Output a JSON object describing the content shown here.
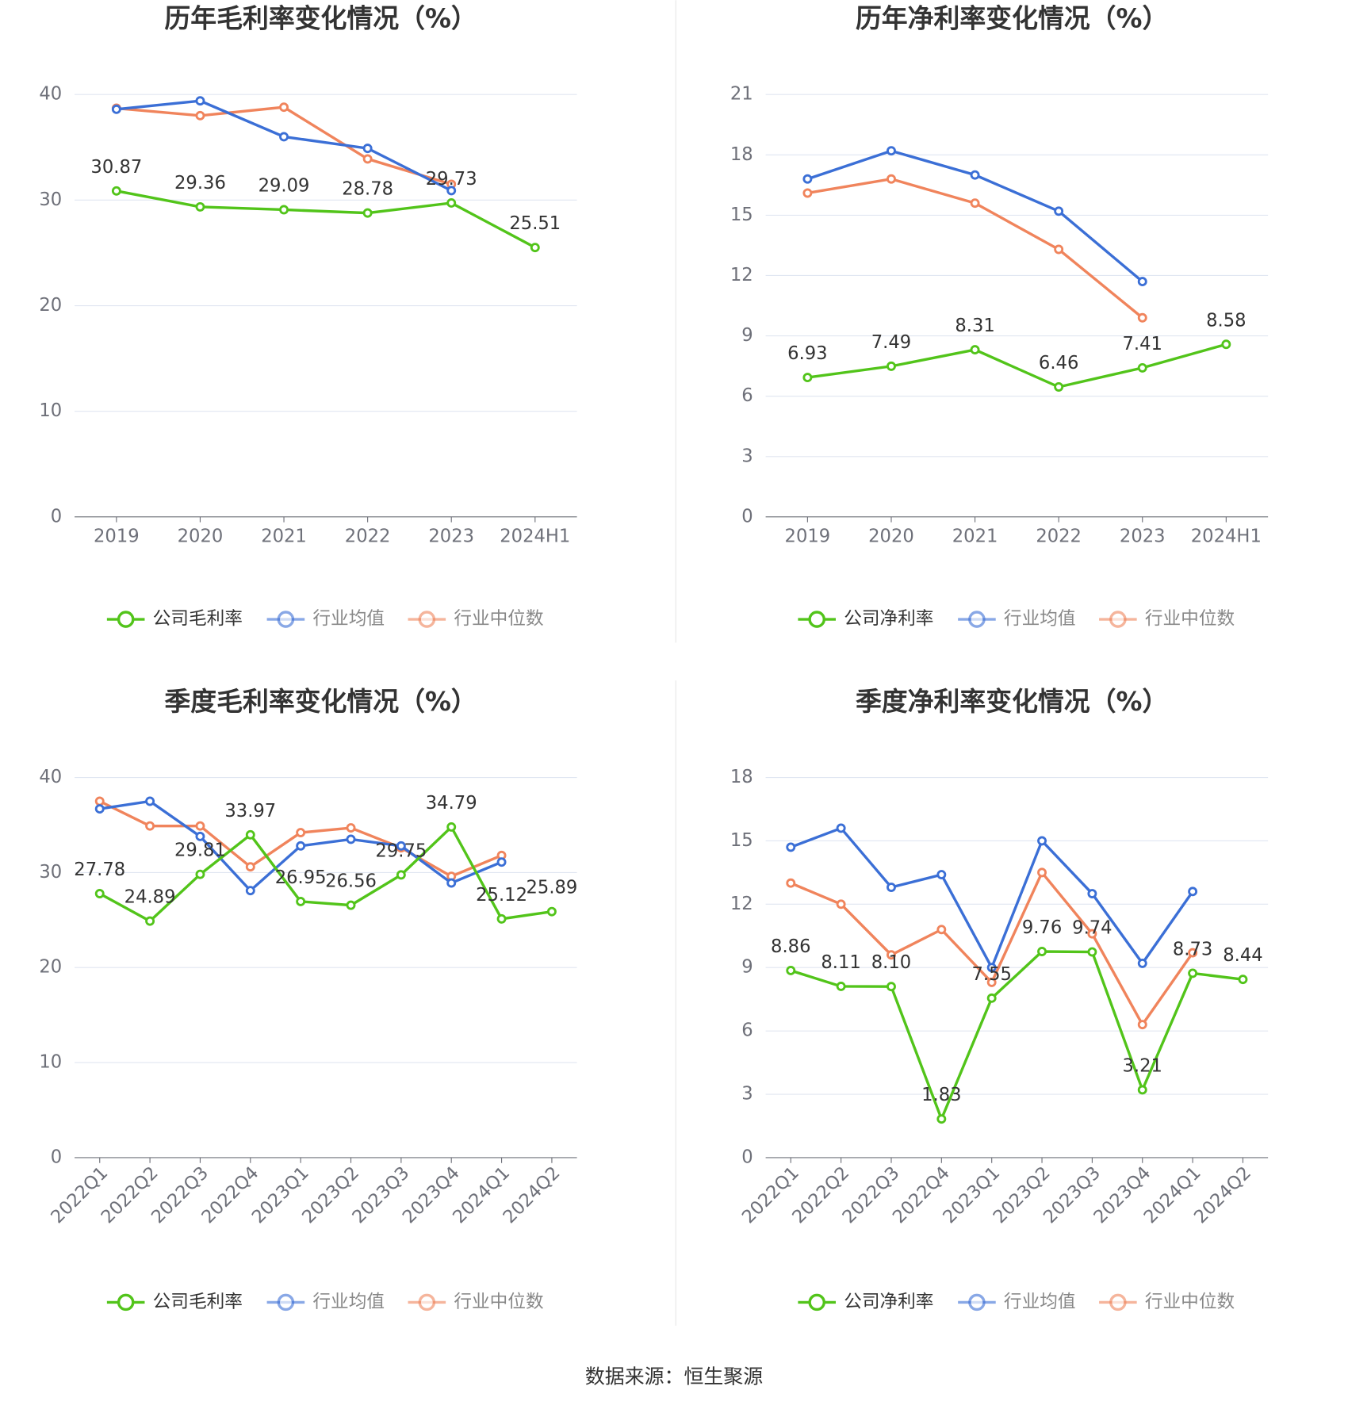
{
  "chart_data": [
    {
      "type": "line",
      "title": "历年毛利率变化情况（%）",
      "categories": [
        "2019",
        "2020",
        "2021",
        "2022",
        "2023",
        "2024H1"
      ],
      "series": [
        {
          "name": "公司毛利率",
          "color": "#52c41a",
          "values": [
            30.87,
            29.36,
            29.09,
            28.78,
            29.73,
            25.51
          ],
          "value_labels": [
            "30.87",
            "29.36",
            "29.09",
            "28.78",
            "29.73",
            "25.51"
          ]
        },
        {
          "name": "行业均值",
          "color": "#3b6fd6",
          "values": [
            38.6,
            39.4,
            36.0,
            34.9,
            30.9,
            null
          ]
        },
        {
          "name": "行业中位数",
          "color": "#f0845c",
          "values": [
            38.7,
            38.0,
            38.8,
            33.9,
            31.5,
            null
          ]
        }
      ],
      "ylim": [
        0,
        40
      ],
      "yticks": [
        0,
        10,
        20,
        30,
        40
      ],
      "grid": true
    },
    {
      "type": "line",
      "title": "历年净利率变化情况（%）",
      "categories": [
        "2019",
        "2020",
        "2021",
        "2022",
        "2023",
        "2024H1"
      ],
      "series": [
        {
          "name": "公司净利率",
          "color": "#52c41a",
          "values": [
            6.93,
            7.49,
            8.31,
            6.46,
            7.41,
            8.58
          ],
          "value_labels": [
            "6.93",
            "7.49",
            "8.31",
            "6.46",
            "7.41",
            "8.58"
          ]
        },
        {
          "name": "行业均值",
          "color": "#3b6fd6",
          "values": [
            16.8,
            18.2,
            17.0,
            15.2,
            11.7,
            null
          ]
        },
        {
          "name": "行业中位数",
          "color": "#f0845c",
          "values": [
            16.1,
            16.8,
            15.6,
            13.3,
            9.9,
            null
          ]
        }
      ],
      "ylim": [
        0,
        21
      ],
      "yticks": [
        0,
        3,
        6,
        9,
        12,
        15,
        18,
        21
      ],
      "grid": true
    },
    {
      "type": "line",
      "title": "季度毛利率变化情况（%）",
      "categories": [
        "2022Q1",
        "2022Q2",
        "2022Q3",
        "2022Q4",
        "2023Q1",
        "2023Q2",
        "2023Q3",
        "2023Q4",
        "2024Q1",
        "2024Q2"
      ],
      "series": [
        {
          "name": "公司毛利率",
          "color": "#52c41a",
          "values": [
            27.78,
            24.89,
            29.81,
            33.97,
            26.95,
            26.56,
            29.75,
            34.79,
            25.12,
            25.89
          ],
          "value_labels": [
            "27.78",
            "24.89",
            "29.81",
            "33.97",
            "26.95",
            "26.56",
            "29.75",
            "34.79",
            "25.12",
            "25.89"
          ]
        },
        {
          "name": "行业均值",
          "color": "#3b6fd6",
          "values": [
            36.7,
            37.5,
            33.8,
            28.1,
            32.8,
            33.5,
            32.8,
            28.9,
            31.1,
            null
          ]
        },
        {
          "name": "行业中位数",
          "color": "#f0845c",
          "values": [
            37.5,
            34.9,
            34.9,
            30.6,
            34.2,
            34.7,
            32.6,
            29.6,
            31.8,
            null
          ]
        }
      ],
      "ylim": [
        0,
        40
      ],
      "yticks": [
        0,
        10,
        20,
        30,
        40
      ],
      "grid": true
    },
    {
      "type": "line",
      "title": "季度净利率变化情况（%）",
      "categories": [
        "2022Q1",
        "2022Q2",
        "2022Q3",
        "2022Q4",
        "2023Q1",
        "2023Q2",
        "2023Q3",
        "2023Q4",
        "2024Q1",
        "2024Q2"
      ],
      "series": [
        {
          "name": "公司净利率",
          "color": "#52c41a",
          "values": [
            8.86,
            8.11,
            8.1,
            1.83,
            7.55,
            9.76,
            9.74,
            3.21,
            8.73,
            8.44
          ],
          "value_labels": [
            "8.86",
            "8.11",
            "8.10",
            "1.83",
            "7.55",
            "9.76",
            "9.74",
            "3.21",
            "8.73",
            "8.44"
          ]
        },
        {
          "name": "行业均值",
          "color": "#3b6fd6",
          "values": [
            14.7,
            15.6,
            12.8,
            13.4,
            9.0,
            15.0,
            12.5,
            9.2,
            12.6,
            null
          ]
        },
        {
          "name": "行业中位数",
          "color": "#f0845c",
          "values": [
            13.0,
            12.0,
            9.6,
            10.8,
            8.3,
            13.5,
            10.6,
            6.3,
            9.7,
            null
          ]
        }
      ],
      "ylim": [
        0,
        18
      ],
      "yticks": [
        0,
        3,
        6,
        9,
        12,
        15,
        18
      ],
      "grid": true
    }
  ],
  "source": "数据来源：恒生聚源"
}
